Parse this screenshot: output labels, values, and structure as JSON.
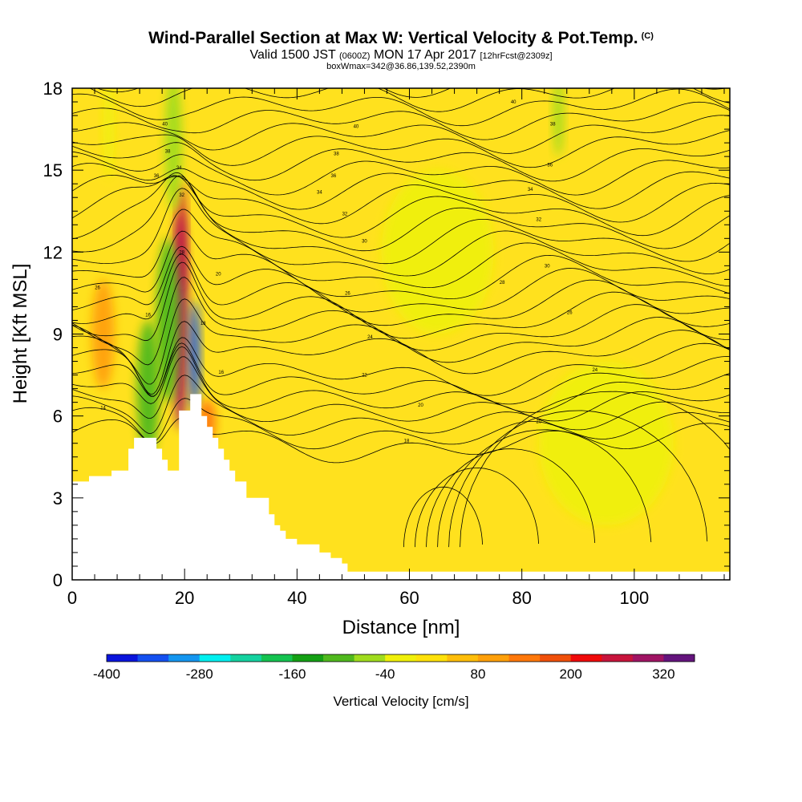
{
  "title": {
    "main": "Wind-Parallel Section at Max W: Vertical Velocity & Pot.Temp.",
    "main_suffix": "(C)",
    "valid_prefix": "Valid 1500 JST",
    "valid_utc": "(0600Z)",
    "valid_date": "MON 17 Apr 2017",
    "forecast": "[12hrFcst@2309z]",
    "box": "boxWmax=342@36.86,139.52,2390m"
  },
  "chart_data": {
    "type": "heatmap",
    "xlabel": "Distance [nm]",
    "ylabel": "Height [Kft MSL]",
    "xlim": [
      0,
      117
    ],
    "ylim": [
      0,
      18
    ],
    "x_ticks": [
      "0",
      "20",
      "40",
      "60",
      "80",
      "100"
    ],
    "y_ticks": [
      "0",
      "3",
      "6",
      "9",
      "12",
      "15",
      "18"
    ],
    "colorbar": {
      "label": "Vertical Velocity [cm/s]",
      "min": -400,
      "max": 360,
      "step": 40,
      "tick_labels": [
        "-400",
        "-280",
        "-160",
        "-40",
        "80",
        "200",
        "320"
      ],
      "colors": [
        "#0a14dc",
        "#1450f0",
        "#1496f0",
        "#00f0f0",
        "#14d2a0",
        "#14c350",
        "#14a014",
        "#50b91e",
        "#a0dc1e",
        "#f0f00a",
        "#ffe10a",
        "#ffbe0a",
        "#ffa00a",
        "#ff780a",
        "#f0500a",
        "#f00a0a",
        "#c8143c",
        "#a01464",
        "#64147d"
      ]
    },
    "background_color": "#ffe11e",
    "terrain_profile": [
      [
        0,
        3.6
      ],
      [
        3,
        3.6
      ],
      [
        3,
        3.8
      ],
      [
        7,
        3.8
      ],
      [
        7,
        4.0
      ],
      [
        10,
        4.0
      ],
      [
        10,
        4.8
      ],
      [
        11,
        4.8
      ],
      [
        11,
        5.2
      ],
      [
        15,
        5.2
      ],
      [
        15,
        4.8
      ],
      [
        16,
        4.8
      ],
      [
        16,
        4.4
      ],
      [
        17,
        4.4
      ],
      [
        17,
        4.0
      ],
      [
        19,
        4.0
      ],
      [
        19,
        6.2
      ],
      [
        21,
        6.2
      ],
      [
        21,
        6.8
      ],
      [
        23,
        6.8
      ],
      [
        23,
        6.0
      ],
      [
        24,
        6.0
      ],
      [
        24,
        5.6
      ],
      [
        25,
        5.6
      ],
      [
        25,
        5.2
      ],
      [
        26,
        5.2
      ],
      [
        26,
        4.8
      ],
      [
        27,
        4.8
      ],
      [
        27,
        4.4
      ],
      [
        28,
        4.4
      ],
      [
        28,
        4.0
      ],
      [
        29,
        4.0
      ],
      [
        29,
        3.6
      ],
      [
        31,
        3.6
      ],
      [
        31,
        3.0
      ],
      [
        35,
        3.0
      ],
      [
        35,
        2.4
      ],
      [
        36,
        2.4
      ],
      [
        36,
        2.0
      ],
      [
        37,
        2.0
      ],
      [
        37,
        1.8
      ],
      [
        38,
        1.8
      ],
      [
        38,
        1.5
      ],
      [
        40,
        1.5
      ],
      [
        40,
        1.3
      ],
      [
        44,
        1.3
      ],
      [
        44,
        1.0
      ],
      [
        46,
        1.0
      ],
      [
        46,
        0.8
      ],
      [
        48,
        0.8
      ],
      [
        48,
        0.6
      ],
      [
        49,
        0.6
      ],
      [
        49,
        0.3
      ],
      [
        117,
        0.3
      ]
    ],
    "velocity_features": [
      {
        "x": 19.2,
        "y": 9.5,
        "w": 1.3,
        "h": 4.0,
        "value": 300
      },
      {
        "x": 19.5,
        "y": 12.5,
        "w": 0.8,
        "h": 2.0,
        "value": 240
      },
      {
        "x": 21.8,
        "y": 8.2,
        "w": 0.9,
        "h": 2.0,
        "value": -360
      },
      {
        "x": 17.0,
        "y": 9.5,
        "w": 2.0,
        "h": 3.0,
        "value": -100
      },
      {
        "x": 13.5,
        "y": 7.0,
        "w": 2.0,
        "h": 2.5,
        "value": -120
      },
      {
        "x": 18.0,
        "y": 16.0,
        "w": 1.5,
        "h": 2.5,
        "value": -80
      },
      {
        "x": 6.5,
        "y": 16.5,
        "w": 1.0,
        "h": 1.8,
        "value": -40
      },
      {
        "x": 86.5,
        "y": 17.0,
        "w": 0.9,
        "h": 1.5,
        "value": -60
      },
      {
        "x": 5.5,
        "y": 9.0,
        "w": 2.0,
        "h": 2.0,
        "value": 100
      },
      {
        "x": 24.0,
        "y": 5.8,
        "w": 1.5,
        "h": 0.8,
        "value": 120
      },
      {
        "x": 65.0,
        "y": 12.0,
        "w": 10.0,
        "h": 3.0,
        "value": -40
      },
      {
        "x": 95.0,
        "y": 5.0,
        "w": 12.0,
        "h": 3.0,
        "value": -40
      }
    ],
    "contour_labels": [
      {
        "text": "40",
        "x": 16.5,
        "y": 16.7
      },
      {
        "text": "40",
        "x": 50.5,
        "y": 16.6
      },
      {
        "text": "40",
        "x": 78.5,
        "y": 17.5
      },
      {
        "text": "38",
        "x": 17.0,
        "y": 15.7
      },
      {
        "text": "38",
        "x": 47.0,
        "y": 15.6
      },
      {
        "text": "38",
        "x": 85.5,
        "y": 16.7
      },
      {
        "text": "36",
        "x": 15.0,
        "y": 14.8
      },
      {
        "text": "36",
        "x": 46.5,
        "y": 14.8
      },
      {
        "text": "36",
        "x": 85.0,
        "y": 15.2
      },
      {
        "text": "34",
        "x": 19.0,
        "y": 15.1
      },
      {
        "text": "34",
        "x": 44.0,
        "y": 14.2
      },
      {
        "text": "34",
        "x": 81.5,
        "y": 14.3
      },
      {
        "text": "32",
        "x": 19.5,
        "y": 14.1
      },
      {
        "text": "32",
        "x": 48.5,
        "y": 13.4
      },
      {
        "text": "32",
        "x": 83.0,
        "y": 13.2
      },
      {
        "text": "30",
        "x": 52.0,
        "y": 12.4
      },
      {
        "text": "30",
        "x": 84.5,
        "y": 11.5
      },
      {
        "text": "28",
        "x": 19.5,
        "y": 12.0
      },
      {
        "text": "28",
        "x": 76.5,
        "y": 10.9
      },
      {
        "text": "26",
        "x": 4.5,
        "y": 10.7
      },
      {
        "text": "26",
        "x": 49.0,
        "y": 10.5
      },
      {
        "text": "26",
        "x": 88.5,
        "y": 9.8
      },
      {
        "text": "24",
        "x": 53.0,
        "y": 8.9
      },
      {
        "text": "24",
        "x": 93.0,
        "y": 7.7
      },
      {
        "text": "22",
        "x": 52.0,
        "y": 7.5
      },
      {
        "text": "20",
        "x": 26.0,
        "y": 11.2
      },
      {
        "text": "20",
        "x": 62.0,
        "y": 6.4
      },
      {
        "text": "20",
        "x": 83.0,
        "y": 5.8
      },
      {
        "text": "18",
        "x": 23.3,
        "y": 9.4
      },
      {
        "text": "18",
        "x": 59.5,
        "y": 5.1
      },
      {
        "text": "16",
        "x": 13.5,
        "y": 9.7
      },
      {
        "text": "16",
        "x": 26.5,
        "y": 7.6
      },
      {
        "text": "14",
        "x": 5.5,
        "y": 6.3
      },
      {
        "text": "14",
        "x": 22.0,
        "y": 6.7
      }
    ]
  }
}
